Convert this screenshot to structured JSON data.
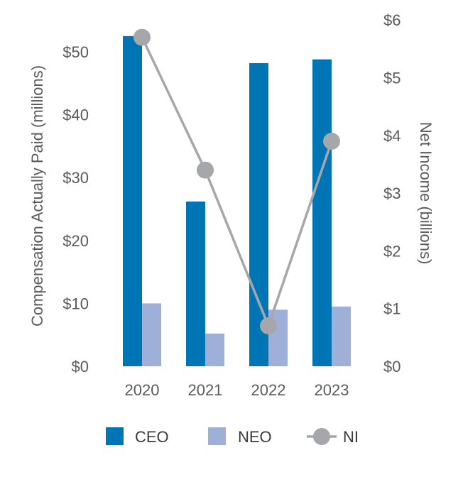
{
  "chart_data": {
    "type": "bar",
    "categories": [
      "2020",
      "2021",
      "2022",
      "2023"
    ],
    "series": [
      {
        "name": "CEO",
        "type": "bar",
        "axis": "left",
        "color": "#0075b5",
        "values": [
          52.5,
          26.2,
          48.2,
          48.8
        ]
      },
      {
        "name": "NEO",
        "type": "bar",
        "axis": "left",
        "color": "#9eafd8",
        "values": [
          10.0,
          5.2,
          9.0,
          9.5
        ]
      },
      {
        "name": "NI",
        "type": "line",
        "axis": "right",
        "color": "#a6a7aa",
        "values": [
          5.7,
          3.4,
          0.7,
          3.9
        ]
      }
    ],
    "ylabel": "Compensation Actually Paid (millions)",
    "y2label": "Net Income (billions)",
    "ylim": [
      0,
      55
    ],
    "y2lim": [
      0,
      6
    ],
    "yticks": [
      0,
      10,
      20,
      30,
      40,
      50
    ],
    "ytick_labels": [
      "$0",
      "$10",
      "$20",
      "$30",
      "$40",
      "$50"
    ],
    "y2ticks": [
      0,
      1,
      2,
      3,
      4,
      5,
      6
    ],
    "y2tick_labels": [
      "$0",
      "$1",
      "$2",
      "$3",
      "$4",
      "$5",
      "$6"
    ],
    "grid": false,
    "legend_position": "bottom"
  }
}
